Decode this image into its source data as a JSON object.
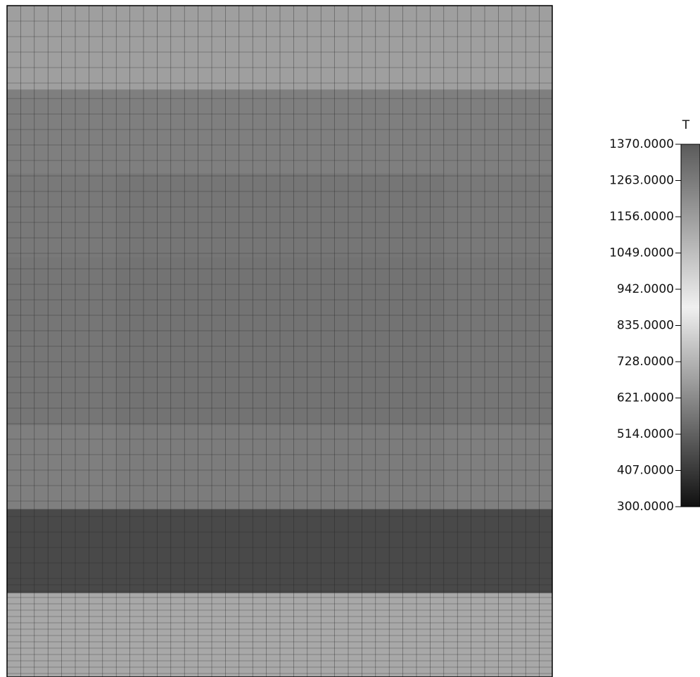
{
  "chart_data": {
    "type": "contour",
    "colorbar_title": "T",
    "clim": [
      300,
      1370
    ],
    "cticks": [
      {
        "value": 1370,
        "label": "1370.0000"
      },
      {
        "value": 1263,
        "label": "1263.0000"
      },
      {
        "value": 1156,
        "label": "1156.0000"
      },
      {
        "value": 1049,
        "label": "1049.0000"
      },
      {
        "value": 942,
        "label": "942.0000"
      },
      {
        "value": 835,
        "label": "835.0000"
      },
      {
        "value": 728,
        "label": "728.0000"
      },
      {
        "value": 621,
        "label": "621.0000"
      },
      {
        "value": 514,
        "label": "514.0000"
      },
      {
        "value": 407,
        "label": "407.0000"
      },
      {
        "value": 300,
        "label": "300.0000"
      }
    ],
    "z": [
      [
        1150,
        1150,
        1150,
        1150,
        1150
      ],
      [
        1250,
        1250,
        1250,
        1250,
        1250
      ],
      [
        1270,
        1280,
        1280,
        1280,
        1270
      ],
      [
        1280,
        1290,
        1290,
        1290,
        1280
      ],
      [
        1280,
        1290,
        1290,
        1290,
        1280
      ],
      [
        1250,
        1260,
        1260,
        1260,
        1250
      ],
      [
        450,
        450,
        450,
        450,
        450
      ],
      [
        700,
        700,
        700,
        700,
        700
      ]
    ]
  }
}
